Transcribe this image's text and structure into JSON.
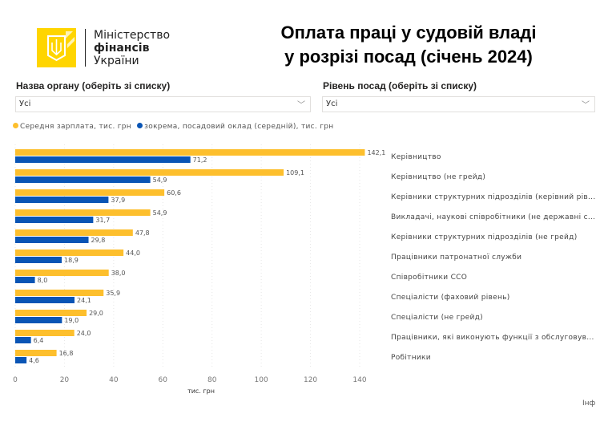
{
  "logo": {
    "line1": "Міністерство",
    "line2": "фінансів",
    "line3": "України"
  },
  "title": {
    "line1": "Оплата праці у судовій владі",
    "line2": "у розрізі посад (січень 2024)"
  },
  "filters": [
    {
      "label": "Назва органу (оберіть зі списку)",
      "value": "Усі"
    },
    {
      "label": "Рівень посад (оберіть зі списку)",
      "value": "Усі"
    }
  ],
  "footer": "Інф",
  "colors": {
    "avg": "#fdbf2d",
    "base": "#0a55b5"
  },
  "chart_data": {
    "type": "bar",
    "orientation": "horizontal",
    "categories": [
      "Керівництво",
      "Керівництво (не грейд)",
      "Керівники структурних підрозділів (керівний рів...",
      "Викладачі, наукові співробітники (не державні с...",
      "Керівники структурних підрозділів (не грейд)",
      "Працівники патронатної служби",
      "Співробітники ССО",
      "Спеціалісти (фаховий рівень)",
      "Спеціалісти (не грейд)",
      "Працівники, які виконують функції з обслуговув...",
      "Робітники"
    ],
    "series": [
      {
        "name": "Середня зарплата, тис. грн",
        "values": [
          142.1,
          109.1,
          60.6,
          54.9,
          47.8,
          44.0,
          38.0,
          35.9,
          29.0,
          24.0,
          16.8
        ]
      },
      {
        "name": "зокрема, посадовий оклад (середній), тис. грн",
        "values": [
          71.2,
          54.9,
          37.9,
          31.7,
          29.8,
          18.9,
          8.0,
          24.1,
          19.0,
          6.4,
          4.6
        ]
      }
    ],
    "xlabel": "тис. грн",
    "xlim": [
      0,
      140
    ],
    "xticks": [
      "0",
      "20",
      "40",
      "60",
      "80",
      "100",
      "120",
      "140"
    ],
    "grid": true,
    "legend": "top-left"
  }
}
